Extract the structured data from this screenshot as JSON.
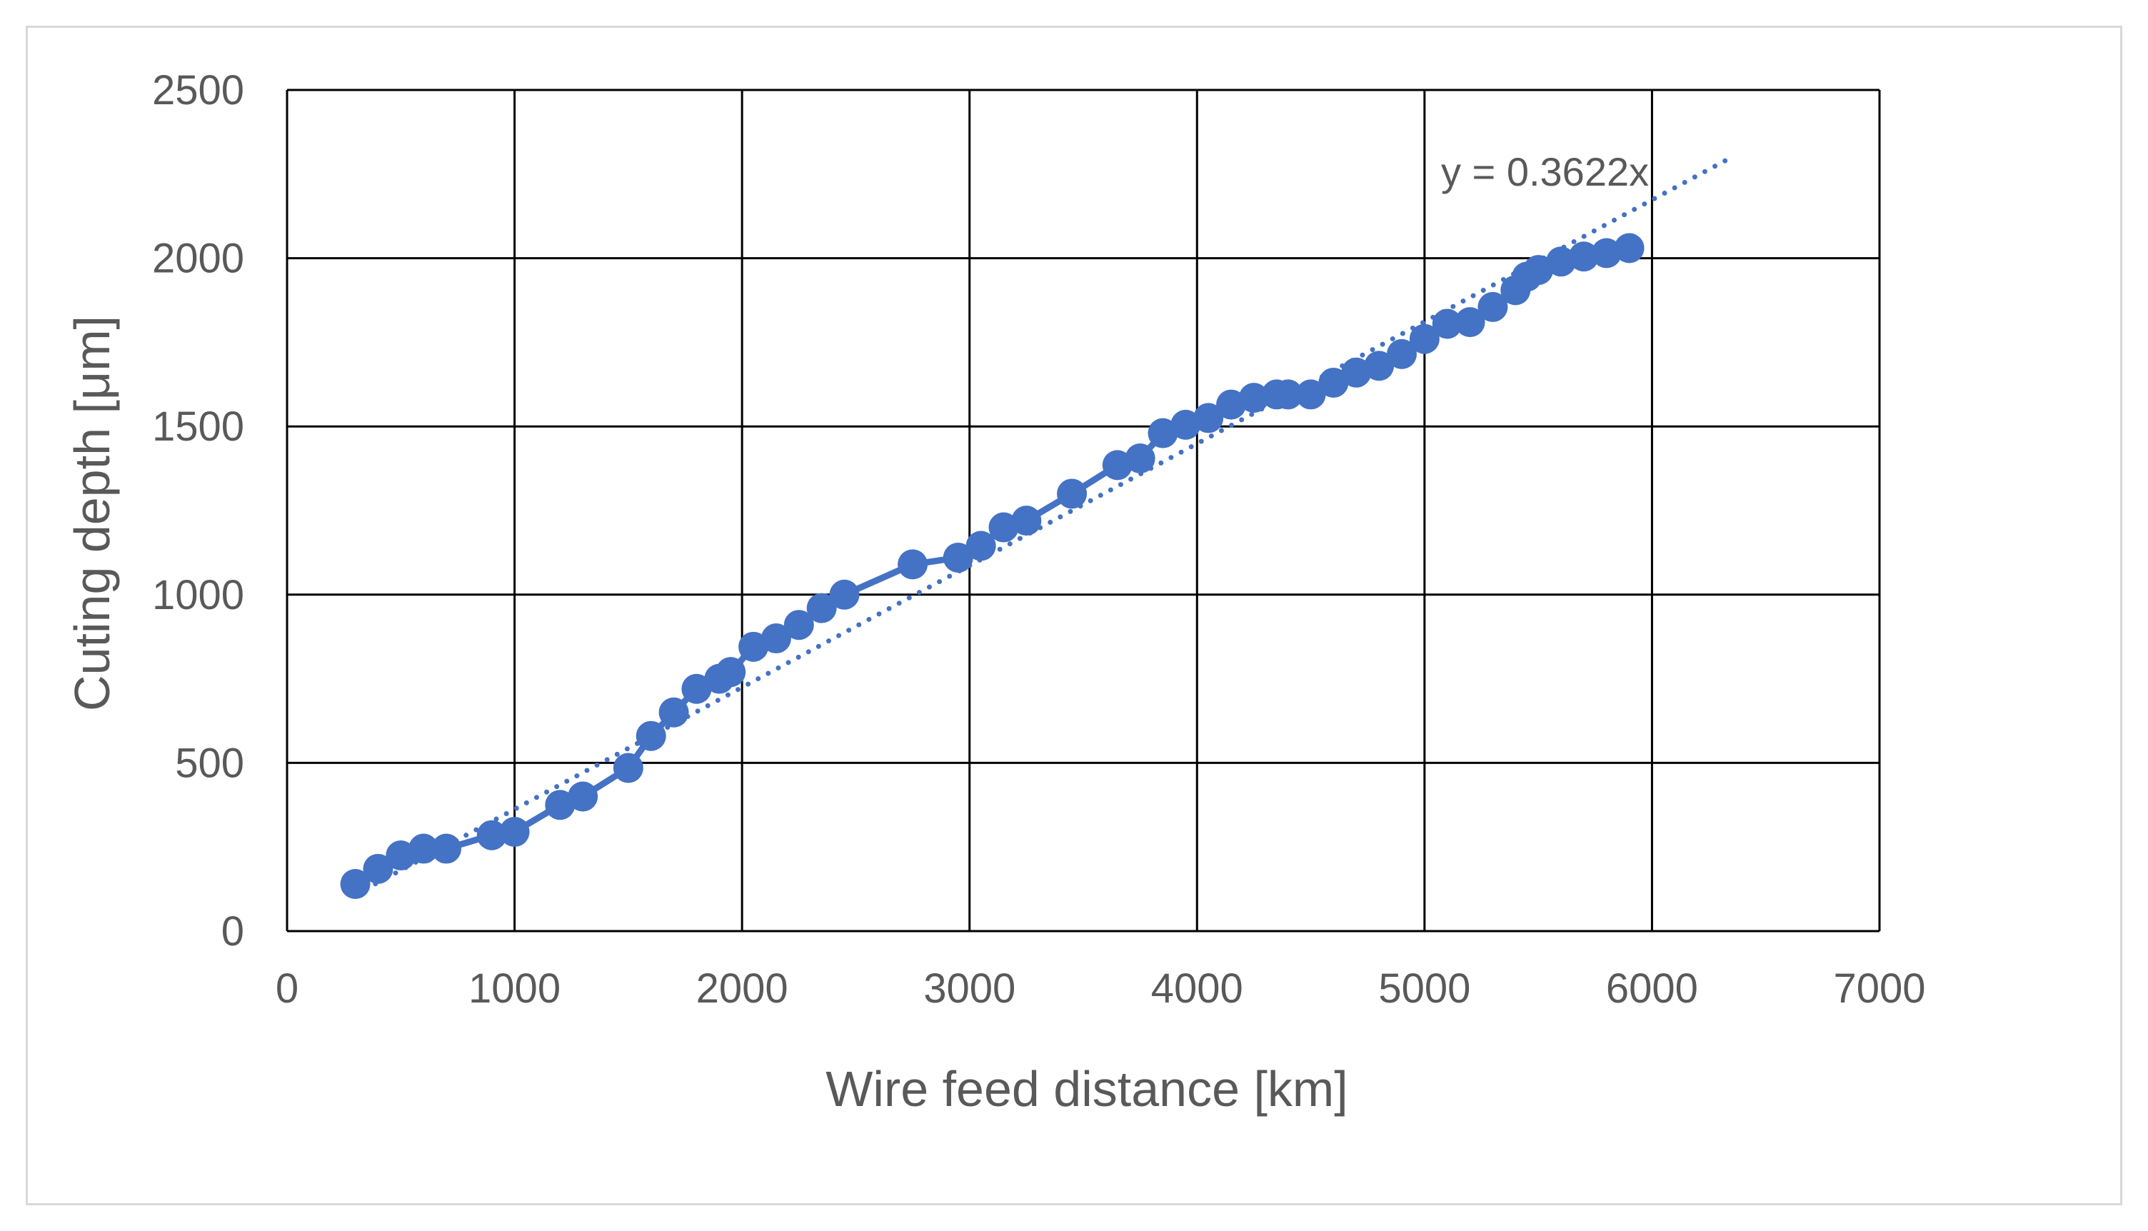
{
  "chart_data": {
    "type": "scatter",
    "title": "",
    "xlabel": "Wire feed distance  [km]",
    "ylabel": "Cuting  depth [μm]",
    "xlim": [
      0,
      7000
    ],
    "ylim": [
      0,
      2500
    ],
    "x_ticks": [
      "0",
      "1000",
      "2000",
      "3000",
      "4000",
      "5000",
      "6000",
      "7000"
    ],
    "y_ticks": [
      "0",
      "500",
      "1000",
      "1500",
      "2000",
      "2500"
    ],
    "grid": true,
    "legend": "none",
    "colors": {
      "series": "#4472c4",
      "grid": "#000000",
      "text": "#595959",
      "frame": "#d9d9d9"
    },
    "series": [
      {
        "name": "Cutting depth",
        "style": "line-with-markers",
        "x": [
          300,
          400,
          500,
          600,
          700,
          900,
          1000,
          1200,
          1300,
          1500,
          1600,
          1700,
          1800,
          1900,
          1950,
          2050,
          2150,
          2250,
          2350,
          2450,
          2750,
          2950,
          3050,
          3150,
          3250,
          3450,
          3650,
          3750,
          3850,
          3950,
          4050,
          4150,
          4250,
          4350,
          4400,
          4500,
          4600,
          4700,
          4800,
          4900,
          5000,
          5100,
          5200,
          5300,
          5400,
          5450,
          5500,
          5600,
          5700,
          5800,
          5900
        ],
        "y": [
          140,
          185,
          225,
          245,
          245,
          285,
          295,
          375,
          400,
          485,
          580,
          650,
          720,
          750,
          770,
          845,
          870,
          910,
          960,
          1000,
          1090,
          1110,
          1145,
          1200,
          1220,
          1300,
          1385,
          1405,
          1480,
          1505,
          1525,
          1565,
          1585,
          1595,
          1595,
          1595,
          1630,
          1660,
          1680,
          1715,
          1760,
          1805,
          1810,
          1855,
          1905,
          1945,
          1965,
          1990,
          2005,
          2015,
          2030
        ]
      }
    ],
    "trendline": {
      "type": "linear",
      "style": "dotted",
      "slope": 0.3622,
      "intercept": 0,
      "x_start": 300,
      "x_end": 6350,
      "equation": "y = 0.3622x"
    }
  }
}
